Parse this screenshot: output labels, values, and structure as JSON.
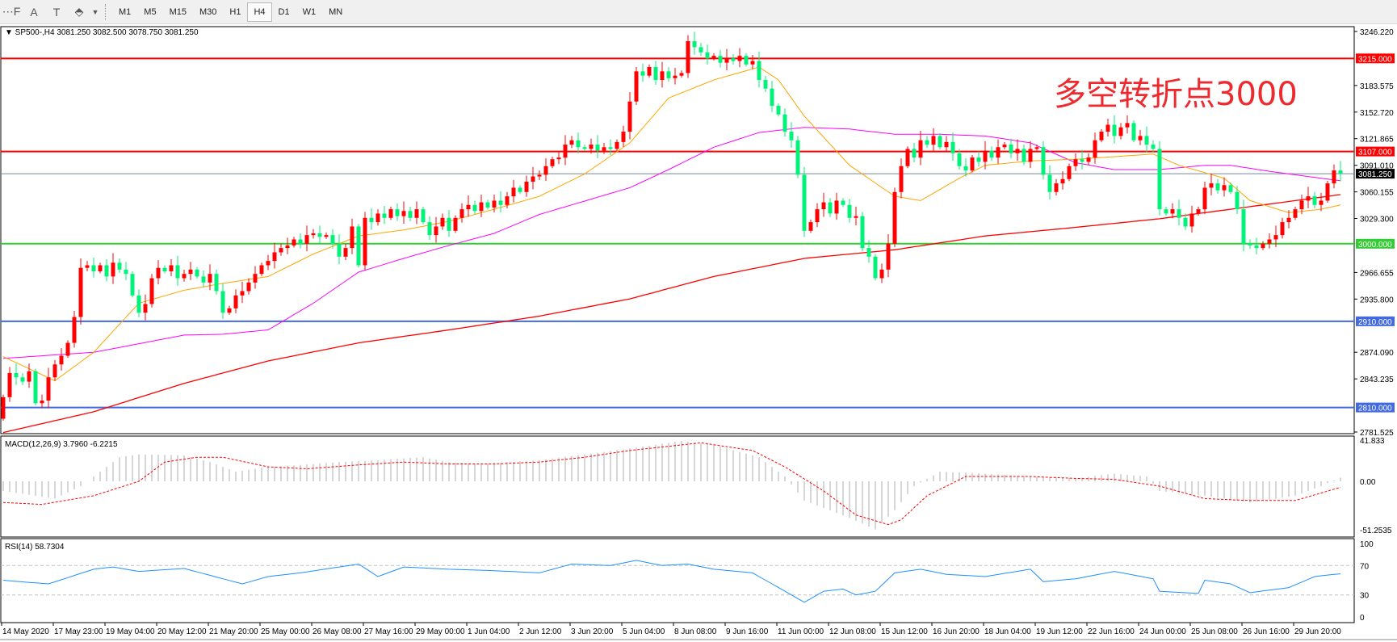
{
  "toolbar": {
    "tools": [
      {
        "name": "fibo-tool-icon",
        "glyph": "⋯F"
      },
      {
        "name": "text-tool-icon",
        "glyph": "A"
      },
      {
        "name": "text-label-tool-icon",
        "glyph": "T"
      },
      {
        "name": "arrows-tool-icon",
        "glyph": "⬘"
      }
    ],
    "timeframes": [
      "M1",
      "M5",
      "M15",
      "M30",
      "H1",
      "H4",
      "D1",
      "W1",
      "MN"
    ],
    "active_timeframe": "H4"
  },
  "chart_header": "SP500-,H4  3081.250 3082.500 3078.750 3081.250",
  "annotation": "多空转折点3000",
  "colors": {
    "up": "#ff0000",
    "down": "#00f27a",
    "ma_fast": "#ffa500",
    "ma_mid": "#ff00ff",
    "ma_slow": "#ff0000",
    "macd_hist": "#c0c0c0",
    "macd_signal": "#ff0000",
    "rsi": "#1e90ff"
  },
  "chart_data": {
    "type": "candlestick",
    "symbol": "SP500-",
    "timeframe": "H4",
    "ylim": [
      2781.525,
      3246.22
    ],
    "price_ticks": [
      "3246.220",
      "3215.000",
      "3183.575",
      "3152.720",
      "3121.865",
      "3107.000",
      "3091.010",
      "3081.250",
      "3060.155",
      "3029.300",
      "3000.000",
      "2966.655",
      "2935.800",
      "2910.000",
      "2874.090",
      "2843.235",
      "2810.000",
      "2781.525"
    ],
    "tick_values": [
      3246.22,
      3183.575,
      3152.72,
      3121.865,
      3091.01,
      3060.155,
      3029.3,
      2966.655,
      2935.8,
      2874.09,
      2843.235,
      2781.525
    ],
    "hlines": [
      {
        "value": 3215.0,
        "label": "3215.000",
        "color": "#ff0000"
      },
      {
        "value": 3107.0,
        "label": "3107.000",
        "color": "#ff0000"
      },
      {
        "value": 3081.25,
        "label": "3081.250",
        "color": "#778899",
        "current": true
      },
      {
        "value": 3000.0,
        "label": "3000.000",
        "color": "#32cd32"
      },
      {
        "value": 2910.0,
        "label": "2910.000",
        "color": "#4169e1"
      },
      {
        "value": 2810.0,
        "label": "2810.000",
        "color": "#4169e1"
      }
    ],
    "time_labels": [
      "14 May 2020",
      "17 May 23:00",
      "19 May 04:00",
      "20 May 12:00",
      "21 May 20:00",
      "25 May 00:00",
      "26 May 08:00",
      "27 May 16:00",
      "29 May 00:00",
      "1 Jun 04:00",
      "2 Jun 12:00",
      "3 Jun 20:00",
      "5 Jun 04:00",
      "8 Jun 08:00",
      "9 Jun 16:00",
      "11 Jun 00:00",
      "12 Jun 08:00",
      "15 Jun 12:00",
      "16 Jun 20:00",
      "18 Jun 04:00",
      "19 Jun 12:00",
      "22 Jun 16:00",
      "24 Jun 00:00",
      "25 Jun 08:00",
      "26 Jun 16:00",
      "29 Jun 20:00"
    ],
    "closes": [
      2822,
      2850,
      2845,
      2840,
      2852,
      2815,
      2818,
      2845,
      2860,
      2870,
      2885,
      2915,
      2972,
      2975,
      2968,
      2975,
      2962,
      2978,
      2970,
      2965,
      2940,
      2920,
      2930,
      2960,
      2972,
      2968,
      2975,
      2960,
      2965,
      2970,
      2962,
      2955,
      2965,
      2945,
      2920,
      2925,
      2940,
      2945,
      2955,
      2965,
      2975,
      2980,
      2990,
      2995,
      2998,
      3005,
      3000,
      3010,
      3012,
      3008,
      3010,
      3000,
      2985,
      2995,
      3020,
      2975,
      3030,
      3025,
      3035,
      3030,
      3040,
      3032,
      3038,
      3030,
      3040,
      3025,
      3010,
      3020,
      3030,
      3015,
      3030,
      3040,
      3045,
      3038,
      3048,
      3042,
      3050,
      3045,
      3055,
      3065,
      3060,
      3072,
      3078,
      3080,
      3090,
      3098,
      3100,
      3115,
      3120,
      3112,
      3110,
      3115,
      3108,
      3112,
      3110,
      3118,
      3130,
      3165,
      3200,
      3195,
      3205,
      3190,
      3200,
      3192,
      3195,
      3198,
      3235,
      3228,
      3222,
      3215,
      3218,
      3210,
      3215,
      3212,
      3218,
      3208,
      3212,
      3190,
      3180,
      3160,
      3150,
      3130,
      3120,
      3080,
      3015,
      3025,
      3040,
      3048,
      3035,
      3050,
      3045,
      3030,
      3032,
      2995,
      2985,
      2960,
      2970,
      3000,
      3060,
      3090,
      3110,
      3100,
      3120,
      3115,
      3125,
      3112,
      3118,
      3105,
      3090,
      3085,
      3100,
      3095,
      3108,
      3100,
      3112,
      3115,
      3105,
      3110,
      3095,
      3110,
      3112,
      3080,
      3060,
      3070,
      3075,
      3090,
      3098,
      3095,
      3100,
      3120,
      3130,
      3138,
      3125,
      3135,
      3140,
      3120,
      3125,
      3115,
      3110,
      3040,
      3035,
      3040,
      3030,
      3020,
      3035,
      3040,
      3065,
      3070,
      3062,
      3068,
      3060,
      3040,
      3000,
      2998,
      2995,
      3000,
      3005,
      3010,
      3025,
      3030,
      3040,
      3050,
      3055,
      3045,
      3050,
      3070,
      3085,
      3081.25
    ],
    "ma_fast": [
      [
        0,
        2869
      ],
      [
        8,
        2841
      ],
      [
        14,
        2874
      ],
      [
        21,
        2931
      ],
      [
        28,
        2946
      ],
      [
        34,
        2954
      ],
      [
        41,
        2962
      ],
      [
        48,
        2988
      ],
      [
        55,
        3009
      ],
      [
        62,
        3016
      ],
      [
        69,
        3026
      ],
      [
        76,
        3040
      ],
      [
        83,
        3055
      ],
      [
        90,
        3081
      ],
      [
        97,
        3117
      ],
      [
        103,
        3169
      ],
      [
        110,
        3190
      ],
      [
        117,
        3205
      ],
      [
        120,
        3190
      ],
      [
        124,
        3148
      ],
      [
        131,
        3091
      ],
      [
        138,
        3055
      ],
      [
        142,
        3050
      ],
      [
        148,
        3076
      ],
      [
        152,
        3091
      ],
      [
        159,
        3096
      ],
      [
        166,
        3098
      ],
      [
        172,
        3101
      ],
      [
        178,
        3104
      ],
      [
        182,
        3091
      ],
      [
        189,
        3076
      ],
      [
        193,
        3050
      ],
      [
        199,
        3036
      ],
      [
        204,
        3040
      ],
      [
        207,
        3045
      ]
    ],
    "ma_mid": [
      [
        0,
        2867
      ],
      [
        14,
        2874
      ],
      [
        28,
        2894
      ],
      [
        34,
        2895
      ],
      [
        41,
        2900
      ],
      [
        48,
        2931
      ],
      [
        55,
        2967
      ],
      [
        62,
        2983
      ],
      [
        69,
        2998
      ],
      [
        76,
        3012
      ],
      [
        83,
        3034
      ],
      [
        97,
        3065
      ],
      [
        103,
        3086
      ],
      [
        110,
        3112
      ],
      [
        117,
        3129
      ],
      [
        124,
        3135
      ],
      [
        131,
        3133
      ],
      [
        138,
        3127
      ],
      [
        145,
        3127
      ],
      [
        152,
        3125
      ],
      [
        159,
        3117
      ],
      [
        166,
        3094
      ],
      [
        172,
        3086
      ],
      [
        179,
        3086
      ],
      [
        186,
        3091
      ],
      [
        190,
        3091
      ],
      [
        196,
        3084
      ],
      [
        204,
        3076
      ],
      [
        207,
        3073
      ]
    ],
    "ma_slow": [
      [
        0,
        2781
      ],
      [
        14,
        2805
      ],
      [
        28,
        2838
      ],
      [
        41,
        2864
      ],
      [
        55,
        2885
      ],
      [
        69,
        2900
      ],
      [
        83,
        2916
      ],
      [
        97,
        2936
      ],
      [
        110,
        2962
      ],
      [
        124,
        2983
      ],
      [
        138,
        2993
      ],
      [
        152,
        3009
      ],
      [
        166,
        3019
      ],
      [
        179,
        3029
      ],
      [
        193,
        3043
      ],
      [
        207,
        3057
      ]
    ],
    "macd": {
      "label": "MACD(12,26,9) 3.7960 -6.2215",
      "ylim": [
        -51.2535,
        41.833
      ],
      "ticks": [
        "41.833",
        "0.00",
        "-51.2535"
      ],
      "main": [
        [
          0,
          -10
        ],
        [
          8,
          -18
        ],
        [
          12,
          -5
        ],
        [
          15,
          10
        ],
        [
          18,
          25
        ],
        [
          21,
          28
        ],
        [
          28,
          27
        ],
        [
          32,
          20
        ],
        [
          36,
          10
        ],
        [
          41,
          15
        ],
        [
          46,
          17
        ],
        [
          52,
          20
        ],
        [
          58,
          22
        ],
        [
          65,
          25
        ],
        [
          69,
          20
        ],
        [
          74,
          18
        ],
        [
          83,
          22
        ],
        [
          90,
          28
        ],
        [
          97,
          34
        ],
        [
          105,
          42
        ],
        [
          110,
          38
        ],
        [
          117,
          25
        ],
        [
          121,
          5
        ],
        [
          124,
          -20
        ],
        [
          131,
          -38
        ],
        [
          135,
          -50
        ],
        [
          138,
          -30
        ],
        [
          141,
          -5
        ],
        [
          145,
          10
        ],
        [
          152,
          8
        ],
        [
          159,
          5
        ],
        [
          166,
          3
        ],
        [
          172,
          8
        ],
        [
          177,
          5
        ],
        [
          179,
          -10
        ],
        [
          186,
          -15
        ],
        [
          193,
          -22
        ],
        [
          200,
          -15
        ],
        [
          204,
          -5
        ],
        [
          207,
          3.796
        ]
      ],
      "signal": [
        [
          0,
          -22
        ],
        [
          6,
          -24
        ],
        [
          14,
          -15
        ],
        [
          21,
          0
        ],
        [
          25,
          20
        ],
        [
          30,
          25
        ],
        [
          34,
          25
        ],
        [
          41,
          15
        ],
        [
          47,
          13
        ],
        [
          55,
          17
        ],
        [
          62,
          20
        ],
        [
          69,
          18
        ],
        [
          76,
          18
        ],
        [
          83,
          20
        ],
        [
          90,
          25
        ],
        [
          97,
          32
        ],
        [
          108,
          40
        ],
        [
          116,
          32
        ],
        [
          121,
          15
        ],
        [
          127,
          -10
        ],
        [
          132,
          -35
        ],
        [
          137,
          -45
        ],
        [
          139,
          -40
        ],
        [
          143,
          -15
        ],
        [
          149,
          5
        ],
        [
          159,
          5
        ],
        [
          166,
          3
        ],
        [
          172,
          2
        ],
        [
          179,
          -5
        ],
        [
          186,
          -18
        ],
        [
          193,
          -20
        ],
        [
          200,
          -20
        ],
        [
          207,
          -6.2215
        ]
      ]
    },
    "rsi": {
      "label": "RSI(14) 58.7304",
      "ylim": [
        0,
        100
      ],
      "levels": [
        70,
        30
      ],
      "ticks": [
        "100",
        "70",
        "30",
        "0"
      ],
      "values": [
        [
          0,
          50
        ],
        [
          4,
          47
        ],
        [
          7,
          45
        ],
        [
          14,
          65
        ],
        [
          17,
          68
        ],
        [
          21,
          62
        ],
        [
          28,
          66
        ],
        [
          34,
          52
        ],
        [
          37,
          45
        ],
        [
          41,
          55
        ],
        [
          46,
          60
        ],
        [
          52,
          68
        ],
        [
          55,
          72
        ],
        [
          58,
          55
        ],
        [
          62,
          68
        ],
        [
          69,
          65
        ],
        [
          76,
          63
        ],
        [
          83,
          60
        ],
        [
          88,
          72
        ],
        [
          94,
          70
        ],
        [
          98,
          77
        ],
        [
          102,
          70
        ],
        [
          106,
          72
        ],
        [
          110,
          65
        ],
        [
          116,
          60
        ],
        [
          120,
          40
        ],
        [
          124,
          20
        ],
        [
          127,
          35
        ],
        [
          130,
          38
        ],
        [
          132,
          30
        ],
        [
          135,
          35
        ],
        [
          138,
          60
        ],
        [
          142,
          65
        ],
        [
          146,
          58
        ],
        [
          152,
          55
        ],
        [
          159,
          65
        ],
        [
          161,
          48
        ],
        [
          166,
          52
        ],
        [
          172,
          62
        ],
        [
          178,
          52
        ],
        [
          179,
          35
        ],
        [
          185,
          32
        ],
        [
          186,
          50
        ],
        [
          190,
          45
        ],
        [
          193,
          33
        ],
        [
          199,
          40
        ],
        [
          203,
          55
        ],
        [
          206,
          58
        ],
        [
          207,
          58.73
        ]
      ]
    }
  }
}
